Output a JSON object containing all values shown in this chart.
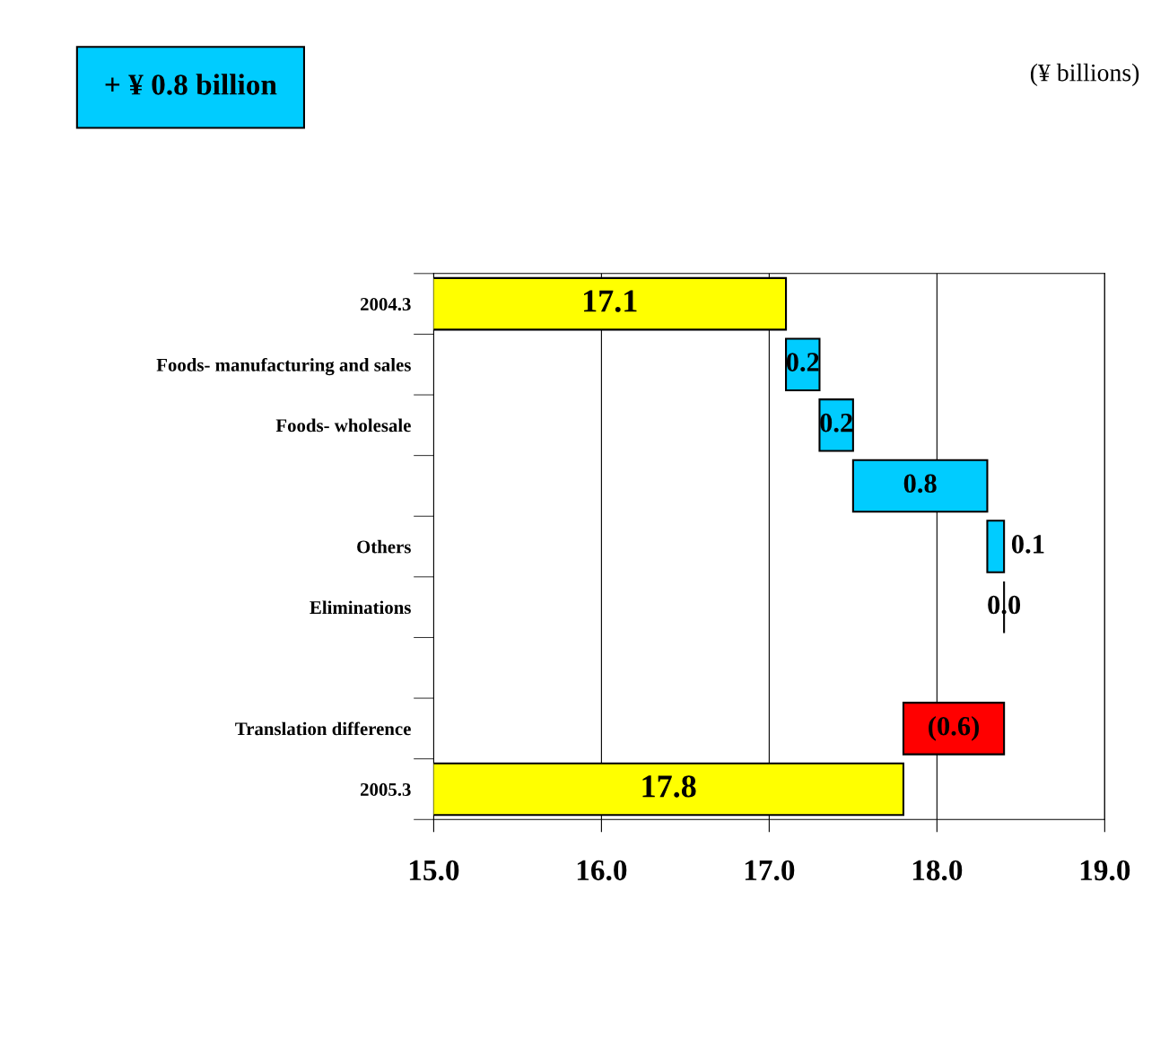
{
  "chart_data": {
    "type": "bar",
    "orientation": "horizontal",
    "categories": [
      "2004.3",
      "Foods- manufacturing and sales",
      "Foods- wholesale",
      null,
      "Others",
      "Eliminations",
      null,
      "Translation difference",
      "2005.3"
    ],
    "values": [
      17.1,
      0.2,
      0.2,
      0.8,
      0.1,
      0.0,
      null,
      -0.6,
      17.8
    ],
    "base": [
      0,
      17.1,
      17.3,
      17.5,
      18.3,
      18.4,
      null,
      18.4,
      0
    ],
    "colors": [
      "#ffff00",
      "#00ccff",
      "#00ccff",
      "#00ccff",
      "#00ccff",
      "#000000",
      null,
      "#ff0000",
      "#ffff00"
    ],
    "value_labels": [
      "17.1",
      "0.2",
      "0.2",
      "0.8",
      "0.1",
      "0.0",
      null,
      "(0.6)",
      "17.8"
    ],
    "xlim": [
      15,
      19
    ],
    "xticks": [
      {
        "value": 15,
        "label": "15.0"
      },
      {
        "value": 16,
        "label": "16.0"
      },
      {
        "value": 17,
        "label": "17.0"
      },
      {
        "value": 18,
        "label": "18.0"
      },
      {
        "value": 19,
        "label": "19.0"
      }
    ],
    "grid": "x",
    "annotations": [
      "+ ¥ 0.8 billion",
      "(¥ billions)"
    ]
  }
}
